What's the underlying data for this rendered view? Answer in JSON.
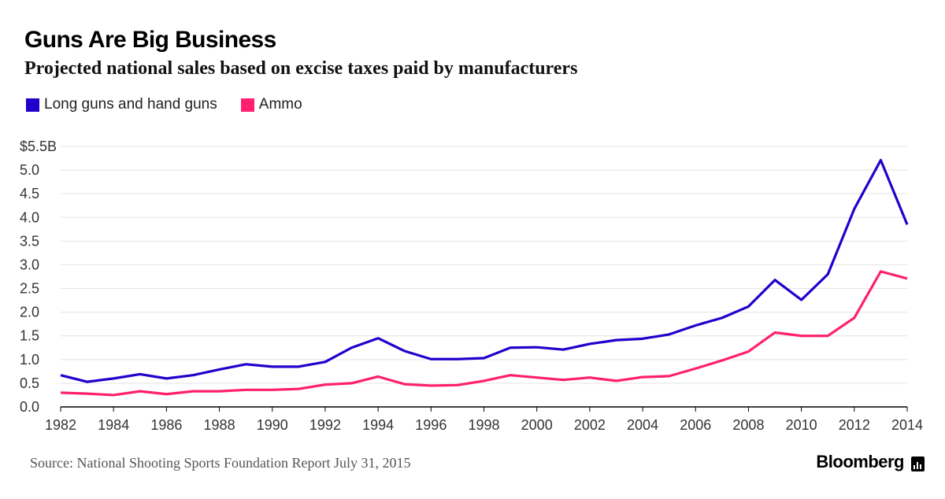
{
  "title": "Guns Are Big Business",
  "subtitle": "Projected national sales based on excise taxes paid by manufacturers",
  "source": "Source: National Shooting Sports Foundation Report July 31, 2015",
  "brand": "Bloomberg",
  "colors": {
    "guns": "#2200cc",
    "ammo": "#ff1f6e",
    "grid": "#e3e3e3",
    "axis": "#000000",
    "tick_text": "#333333"
  },
  "chart_data": {
    "type": "line",
    "title": "Guns Are Big Business",
    "xlabel": "",
    "ylabel": "",
    "x": [
      1982,
      1983,
      1984,
      1985,
      1986,
      1987,
      1988,
      1989,
      1990,
      1991,
      1992,
      1993,
      1994,
      1995,
      1996,
      1997,
      1998,
      1999,
      2000,
      2001,
      2002,
      2003,
      2004,
      2005,
      2006,
      2007,
      2008,
      2009,
      2010,
      2011,
      2012,
      2013,
      2014
    ],
    "xlim": [
      1982,
      2014
    ],
    "ylim": [
      0,
      5.5
    ],
    "grid": true,
    "legend": "top-left",
    "x_ticks": [
      1982,
      1984,
      1986,
      1988,
      1990,
      1992,
      1994,
      1996,
      1998,
      2000,
      2002,
      2004,
      2006,
      2008,
      2010,
      2012,
      2014
    ],
    "y_ticks": [
      {
        "value": 0,
        "label": "0.0"
      },
      {
        "value": 0.5,
        "label": "0.5"
      },
      {
        "value": 1.0,
        "label": "1.0"
      },
      {
        "value": 1.5,
        "label": "1.5"
      },
      {
        "value": 2.0,
        "label": "2.0"
      },
      {
        "value": 2.5,
        "label": "2.5"
      },
      {
        "value": 3.0,
        "label": "3.0"
      },
      {
        "value": 3.5,
        "label": "3.5"
      },
      {
        "value": 4.0,
        "label": "4.0"
      },
      {
        "value": 4.5,
        "label": "4.5"
      },
      {
        "value": 5.0,
        "label": "5.0"
      },
      {
        "value": 5.5,
        "label": "$5.5B"
      }
    ],
    "series": [
      {
        "name": "Long guns and hand guns",
        "key": "guns",
        "values": [
          0.67,
          0.53,
          0.6,
          0.69,
          0.6,
          0.67,
          0.79,
          0.9,
          0.85,
          0.85,
          0.95,
          1.25,
          1.45,
          1.18,
          1.01,
          1.01,
          1.03,
          1.25,
          1.26,
          1.21,
          1.33,
          1.41,
          1.44,
          1.53,
          1.72,
          1.88,
          2.12,
          2.68,
          2.26,
          2.8,
          4.18,
          5.21,
          3.85
        ]
      },
      {
        "name": "Ammo",
        "key": "ammo",
        "values": [
          0.3,
          0.28,
          0.25,
          0.33,
          0.27,
          0.33,
          0.33,
          0.36,
          0.36,
          0.38,
          0.47,
          0.5,
          0.64,
          0.48,
          0.45,
          0.46,
          0.55,
          0.67,
          0.62,
          0.57,
          0.62,
          0.55,
          0.63,
          0.65,
          0.81,
          0.98,
          1.17,
          1.57,
          1.5,
          1.5,
          1.88,
          2.86,
          2.71
        ]
      }
    ]
  }
}
